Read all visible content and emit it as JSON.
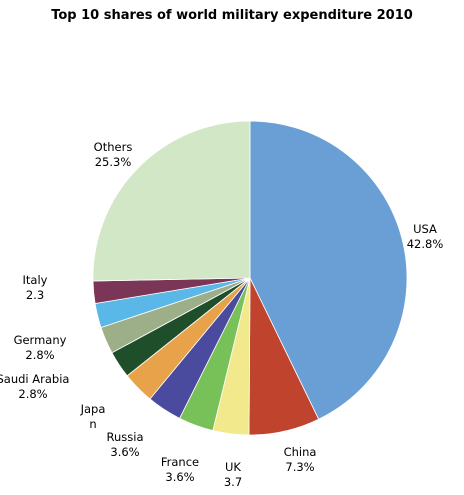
{
  "chart_data": {
    "type": "pie",
    "title": "Top 10 shares of world military expenditure 2010",
    "categories": [
      "USA",
      "China",
      "UK",
      "France",
      "Russia",
      "Japa\nn",
      "Saudi Arabia",
      "Germany",
      null,
      "Italy",
      "Others"
    ],
    "values": [
      42.8,
      7.3,
      3.7,
      3.6,
      3.6,
      3.3,
      2.8,
      2.8,
      2.5,
      2.3,
      25.3
    ],
    "value_labels": [
      "42.8%",
      "7.3%",
      "3.7",
      "3.6%",
      "3.6%",
      null,
      "2.8%",
      "2.8%",
      null,
      "2.3",
      "25.3%"
    ],
    "colors": [
      "#6a9fd6",
      "#c0432e",
      "#f1e98b",
      "#77c158",
      "#4a4a9e",
      "#e8a24a",
      "#1f4e2a",
      "#9daf88",
      "#5ab8e8",
      "#7b3557",
      "#d1e7c6"
    ]
  }
}
